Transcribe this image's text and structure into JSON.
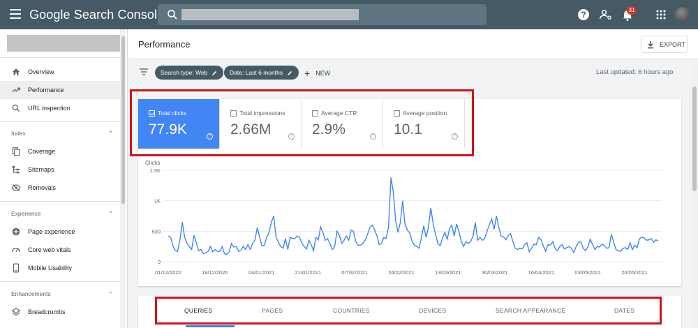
{
  "app": {
    "title": "Google Search Console"
  },
  "topbar": {
    "menu_icon": "hamburger-icon",
    "search_icon": "search-icon",
    "help_icon": "help-icon",
    "users_icon": "manage-users-icon",
    "notifications_icon": "bell-icon",
    "notifications_count": "31",
    "apps_icon": "apps-grid-icon"
  },
  "sidebar": {
    "items_top": [
      {
        "label": "Overview",
        "icon": "home-icon"
      },
      {
        "label": "Performance",
        "icon": "trending-up-icon",
        "active": true
      },
      {
        "label": "URL inspection",
        "icon": "search-icon"
      }
    ],
    "index": {
      "title": "Index",
      "items": [
        {
          "label": "Coverage",
          "icon": "coverage-icon"
        },
        {
          "label": "Sitemaps",
          "icon": "sitemap-icon"
        },
        {
          "label": "Removals",
          "icon": "removals-icon"
        }
      ]
    },
    "experience": {
      "title": "Experience",
      "items": [
        {
          "label": "Page experience",
          "icon": "page-experience-icon"
        },
        {
          "label": "Core web vitals",
          "icon": "gauge-icon"
        },
        {
          "label": "Mobile Usability",
          "icon": "mobile-icon"
        }
      ]
    },
    "enhancements": {
      "title": "Enhancements",
      "items": [
        {
          "label": "Breadcrumbs",
          "icon": "layers-icon"
        }
      ]
    }
  },
  "header": {
    "title": "Performance",
    "export_label": "EXPORT"
  },
  "filters": {
    "chips": [
      "Search type: Web",
      "Date: Last 6 months"
    ],
    "new_label": "NEW",
    "last_updated": "Last updated: 6 hours ago"
  },
  "metrics": [
    {
      "label": "Total clicks",
      "value": "77.9K",
      "selected": true
    },
    {
      "label": "Total impressions",
      "value": "2.66M",
      "selected": false
    },
    {
      "label": "Average CTR",
      "value": "2.9%",
      "selected": false
    },
    {
      "label": "Average position",
      "value": "10.1",
      "selected": false
    }
  ],
  "chart_data": {
    "type": "line",
    "ylabel": "Clicks",
    "ylim": [
      0,
      1500
    ],
    "yticks": [
      "0",
      "500",
      "1K",
      "1.5K"
    ],
    "xticks": [
      "01/12/2020",
      "18/12/2020",
      "04/01/2021",
      "21/01/2021",
      "07/02/2021",
      "24/02/2021",
      "13/03/2021",
      "30/03/2021",
      "16/04/2021",
      "03/05/2021",
      "20/05/2021"
    ],
    "color": "#4285f4",
    "series": [
      {
        "values": [
          420,
          400,
          260,
          180,
          170,
          360,
          650,
          400,
          300,
          250,
          200,
          430,
          310,
          180,
          200,
          130,
          150,
          170,
          250,
          160,
          200,
          170,
          170,
          250,
          130,
          120,
          160,
          300,
          240,
          250,
          170,
          190,
          250,
          200,
          280,
          200,
          300,
          360,
          560,
          400,
          260,
          270,
          400,
          480,
          650,
          750,
          400,
          320,
          250,
          220,
          380,
          200,
          400,
          380,
          380,
          420,
          400,
          300,
          250,
          210,
          350,
          280,
          180,
          400,
          360,
          570,
          480,
          350,
          380,
          290,
          200,
          250,
          500,
          430,
          300,
          350,
          420,
          350,
          520,
          500,
          330,
          270,
          270,
          300,
          350,
          450,
          560,
          600,
          520,
          430,
          280,
          300,
          400,
          380,
          580,
          1380,
          1150,
          680,
          480,
          640,
          1000,
          620,
          520,
          470,
          340,
          270,
          250,
          220,
          400,
          590,
          400,
          570,
          880,
          620,
          450,
          300,
          260,
          390,
          480,
          370,
          550,
          600,
          420,
          620,
          490,
          330,
          250,
          330,
          300,
          330,
          420,
          640,
          350,
          400,
          350,
          380,
          500,
          610,
          700,
          530,
          750,
          560,
          420,
          410,
          360,
          430,
          460,
          330,
          220,
          200,
          220,
          210,
          280,
          310,
          160,
          220,
          290,
          280,
          400,
          360,
          260,
          170,
          280,
          270,
          330,
          220,
          180,
          250,
          280,
          210,
          230,
          250,
          220,
          150,
          250,
          310,
          330,
          220,
          180,
          240,
          370,
          280,
          200,
          250,
          240,
          290,
          270,
          220,
          230,
          450,
          320,
          200,
          180,
          170,
          220,
          230,
          200,
          310,
          200,
          270,
          230,
          380,
          400,
          390,
          350,
          360,
          380,
          320,
          360,
          340
        ]
      }
    ]
  },
  "tabs": [
    {
      "label": "QUERIES",
      "active": true
    },
    {
      "label": "PAGES"
    },
    {
      "label": "COUNTRIES"
    },
    {
      "label": "DEVICES"
    },
    {
      "label": "SEARCH APPEARANCE"
    },
    {
      "label": "DATES"
    }
  ]
}
